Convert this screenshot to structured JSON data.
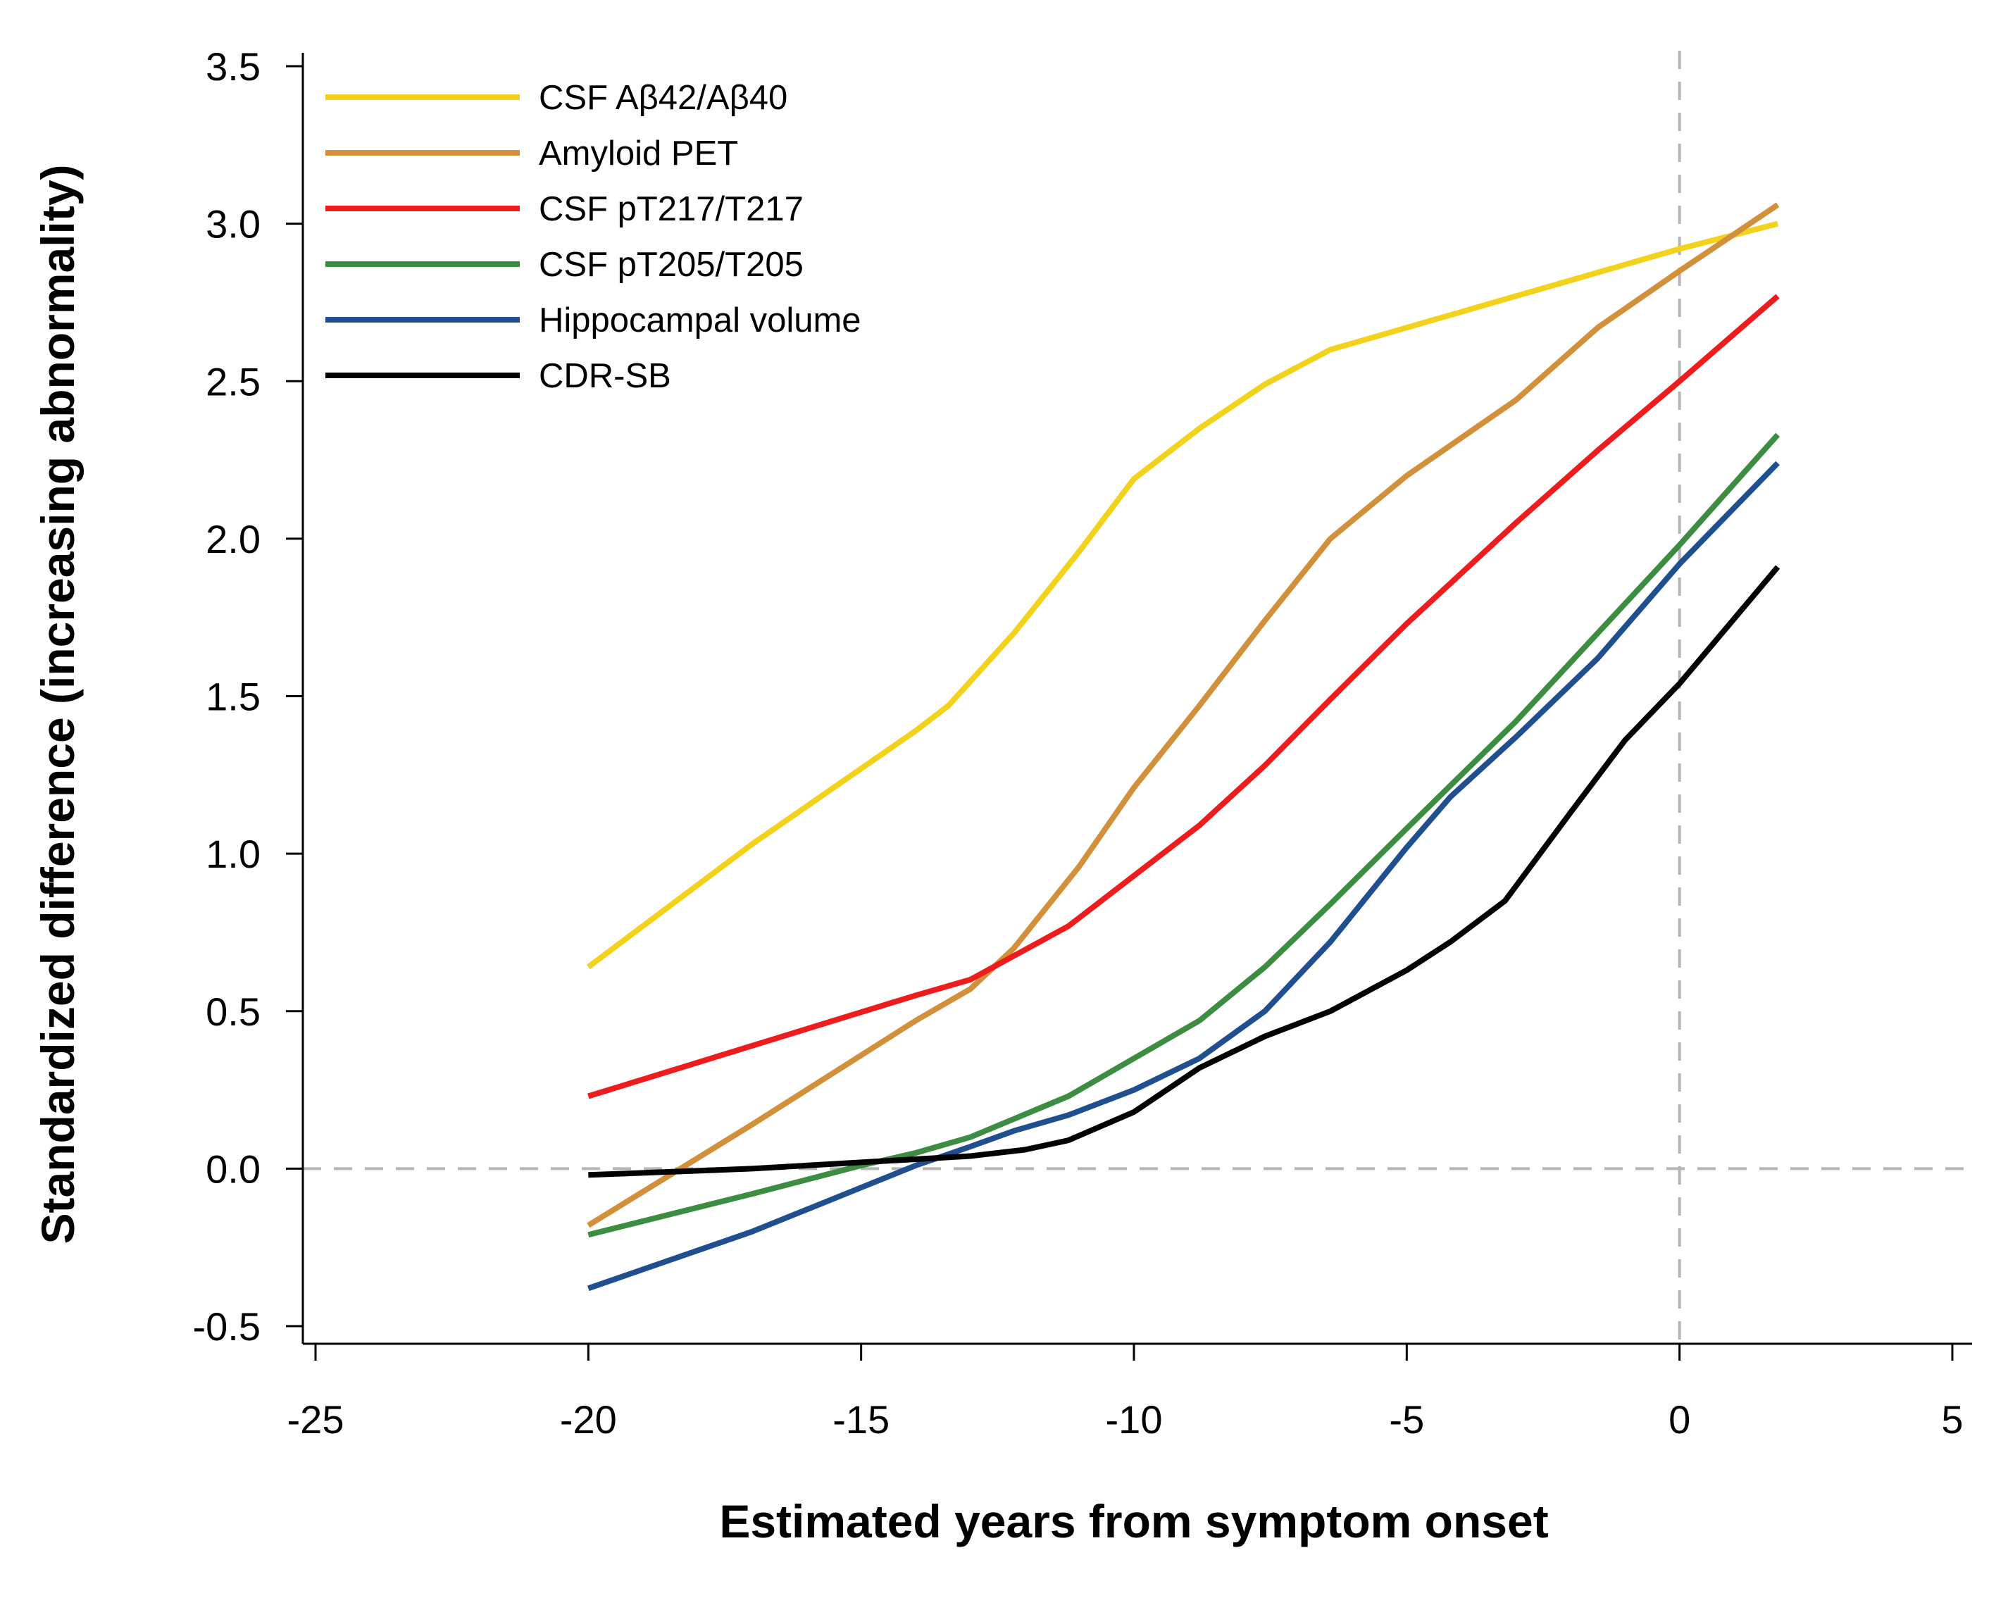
{
  "chart_data": {
    "type": "line",
    "title": "",
    "xlabel": "Estimated years from symptom onset",
    "ylabel": "Standardized difference (increasing abnormality)",
    "xlim": [
      -25,
      5
    ],
    "ylim": [
      -0.5,
      3.5
    ],
    "x_ticks": [
      -25,
      -20,
      -15,
      -10,
      -5,
      0,
      5
    ],
    "x_tick_labels": [
      "-25",
      "-20",
      "-15",
      "-10",
      "-5",
      "0",
      "5"
    ],
    "y_ticks": [
      -0.5,
      0,
      0.5,
      1,
      1.5,
      2,
      2.5,
      3,
      3.5
    ],
    "y_tick_labels": [
      "-0.5",
      "0.0",
      "0.5",
      "1.0",
      "1.5",
      "2.0",
      "2.5",
      "3.0",
      "3.5"
    ],
    "reference_lines": [
      {
        "axis": "y",
        "value": 0,
        "style": "dashed",
        "color": "#b5b5b5"
      },
      {
        "axis": "x",
        "value": 0,
        "style": "dashed",
        "color": "#b5b5b5"
      }
    ],
    "legend_position": "top-left",
    "series": [
      {
        "name": "CSF Aβ42/Aβ40",
        "color": "#f2d21b",
        "points": [
          [
            -20,
            0.64
          ],
          [
            -17,
            1.03
          ],
          [
            -14,
            1.39
          ],
          [
            -13.4,
            1.47
          ],
          [
            -12.2,
            1.7
          ],
          [
            -11,
            1.96
          ],
          [
            -10,
            2.19
          ],
          [
            -8.8,
            2.35
          ],
          [
            -7.6,
            2.49
          ],
          [
            -6.4,
            2.6
          ],
          [
            -4.2,
            2.71
          ],
          [
            -2,
            2.82
          ],
          [
            0,
            2.92
          ],
          [
            1.8,
            3.0
          ]
        ]
      },
      {
        "name": "Amyloid PET",
        "color": "#d3903b",
        "points": [
          [
            -20,
            -0.18
          ],
          [
            -17,
            0.14
          ],
          [
            -14,
            0.47
          ],
          [
            -13,
            0.57
          ],
          [
            -12.2,
            0.7
          ],
          [
            -11,
            0.96
          ],
          [
            -10,
            1.21
          ],
          [
            -8.8,
            1.47
          ],
          [
            -7.6,
            1.74
          ],
          [
            -6.4,
            2.0
          ],
          [
            -5,
            2.2
          ],
          [
            -3,
            2.44
          ],
          [
            -1.5,
            2.67
          ],
          [
            0,
            2.85
          ],
          [
            1.8,
            3.06
          ]
        ]
      },
      {
        "name": "CSF pT217/T217",
        "color": "#ee1c1c",
        "points": [
          [
            -20,
            0.23
          ],
          [
            -17,
            0.39
          ],
          [
            -14,
            0.55
          ],
          [
            -13,
            0.6
          ],
          [
            -11.2,
            0.77
          ],
          [
            -10,
            0.93
          ],
          [
            -8.8,
            1.09
          ],
          [
            -7.6,
            1.28
          ],
          [
            -6.4,
            1.49
          ],
          [
            -5,
            1.73
          ],
          [
            -3,
            2.05
          ],
          [
            -1.5,
            2.28
          ],
          [
            0,
            2.5
          ],
          [
            1.8,
            2.77
          ]
        ]
      },
      {
        "name": "CSF pT205/T205",
        "color": "#3c8c42",
        "points": [
          [
            -20,
            -0.21
          ],
          [
            -17,
            -0.08
          ],
          [
            -15,
            0.01
          ],
          [
            -14,
            0.05
          ],
          [
            -13,
            0.1
          ],
          [
            -11.2,
            0.23
          ],
          [
            -10,
            0.35
          ],
          [
            -8.8,
            0.47
          ],
          [
            -7.6,
            0.64
          ],
          [
            -6.4,
            0.84
          ],
          [
            -5,
            1.08
          ],
          [
            -3,
            1.42
          ],
          [
            -1.5,
            1.7
          ],
          [
            0,
            1.98
          ],
          [
            1.8,
            2.33
          ]
        ]
      },
      {
        "name": "Hippocampal volume",
        "color": "#1f4f8f",
        "points": [
          [
            -20,
            -0.38
          ],
          [
            -17,
            -0.2
          ],
          [
            -15,
            -0.06
          ],
          [
            -14,
            0.01
          ],
          [
            -13,
            0.07
          ],
          [
            -12.2,
            0.12
          ],
          [
            -11.2,
            0.17
          ],
          [
            -10,
            0.25
          ],
          [
            -8.8,
            0.35
          ],
          [
            -7.6,
            0.5
          ],
          [
            -6.4,
            0.72
          ],
          [
            -5,
            1.02
          ],
          [
            -4.2,
            1.18
          ],
          [
            -3,
            1.37
          ],
          [
            -1.5,
            1.62
          ],
          [
            0,
            1.92
          ],
          [
            1.8,
            2.24
          ]
        ]
      },
      {
        "name": "CDR-SB",
        "color": "#000000",
        "points": [
          [
            -20,
            -0.02
          ],
          [
            -17,
            0.0
          ],
          [
            -15,
            0.02
          ],
          [
            -13,
            0.04
          ],
          [
            -12,
            0.06
          ],
          [
            -11.2,
            0.09
          ],
          [
            -10,
            0.18
          ],
          [
            -8.8,
            0.32
          ],
          [
            -7.6,
            0.42
          ],
          [
            -6.4,
            0.5
          ],
          [
            -5,
            0.63
          ],
          [
            -4.2,
            0.72
          ],
          [
            -3.2,
            0.85
          ],
          [
            -2,
            1.13
          ],
          [
            -1,
            1.36
          ],
          [
            0,
            1.54
          ],
          [
            1.8,
            1.91
          ]
        ]
      }
    ]
  }
}
